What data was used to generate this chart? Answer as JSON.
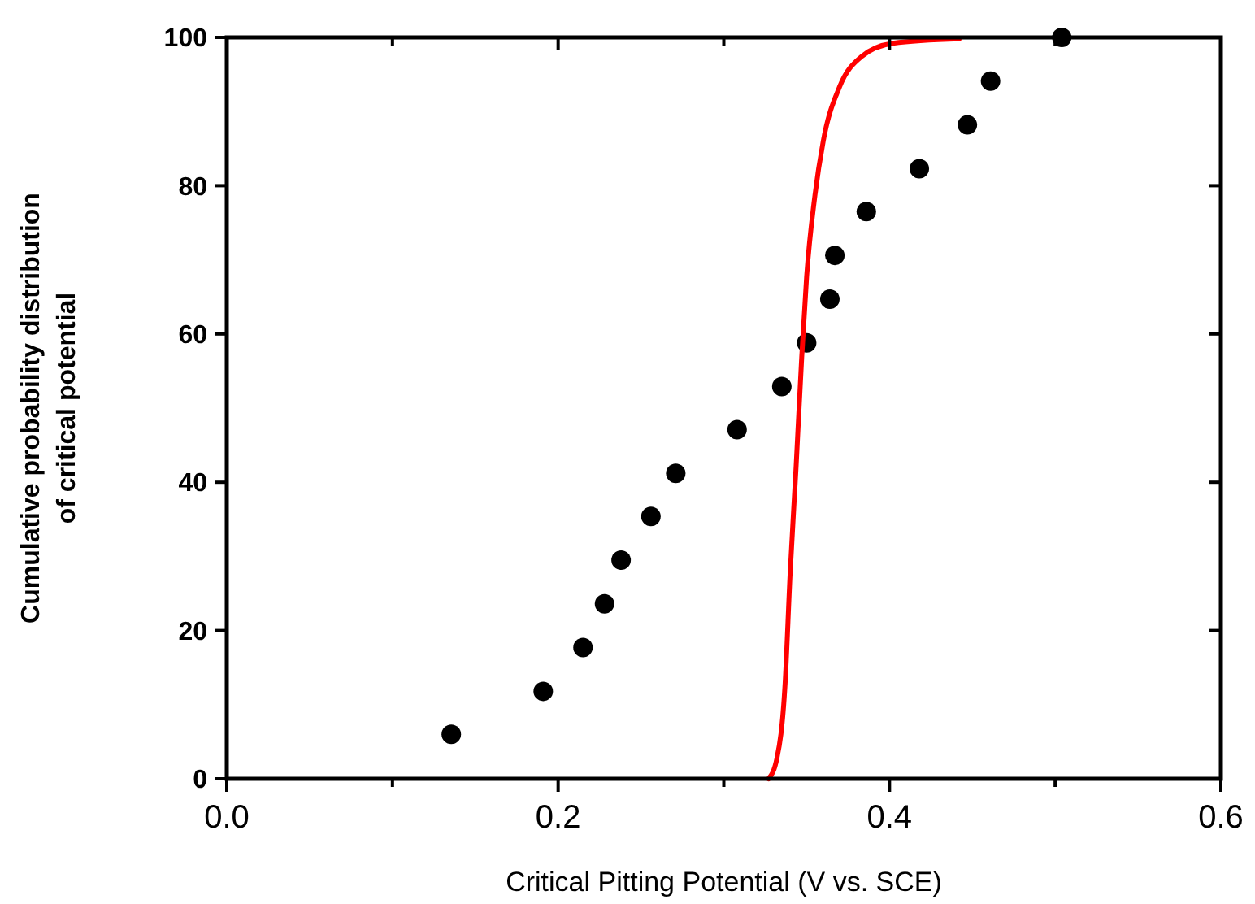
{
  "chart_data": {
    "type": "scatter",
    "xlabel": "Critical Pitting Potential (V vs. SCE)",
    "ylabel": "Cumulative probability distribution\nof critical potential",
    "xlim": [
      0,
      0.6
    ],
    "ylim": [
      0,
      100
    ],
    "xticks": [
      {
        "value": 0,
        "label": "0.0"
      },
      {
        "value": 0.1,
        "label": null
      },
      0.2,
      {
        "value": 0.3,
        "label": null
      },
      0.4,
      {
        "value": 0.5,
        "label": null
      },
      0.6
    ],
    "yticks": [
      0,
      20,
      40,
      60,
      80,
      100
    ],
    "grid": false,
    "series": [
      {
        "color": "#000000",
        "marker": "circle",
        "x": [
          0.1355,
          0.191,
          0.215,
          0.228,
          0.238,
          0.256,
          0.271,
          0.308,
          0.335,
          0.35,
          0.364,
          0.367,
          0.386,
          0.418,
          0.447,
          0.461,
          0.504
        ],
        "values": [
          6.0,
          11.8,
          17.7,
          23.6,
          29.5,
          35.4,
          41.2,
          47.1,
          52.9,
          58.8,
          64.7,
          70.6,
          76.5,
          82.3,
          88.2,
          94.1,
          100
        ]
      },
      {
        "type": "line",
        "color": "#ff0000",
        "marker": "none",
        "line_style": "solid",
        "x": [
          0.327,
          0.332,
          0.337,
          0.34,
          0.3436,
          0.347,
          0.35,
          0.355,
          0.36,
          0.37,
          0.383,
          0.402,
          0.442
        ],
        "values": [
          0,
          2.7,
          12.9,
          27.6,
          42,
          56.8,
          67.8,
          78.7,
          86,
          93.4,
          97.4,
          99.2,
          99.8
        ]
      }
    ]
  }
}
